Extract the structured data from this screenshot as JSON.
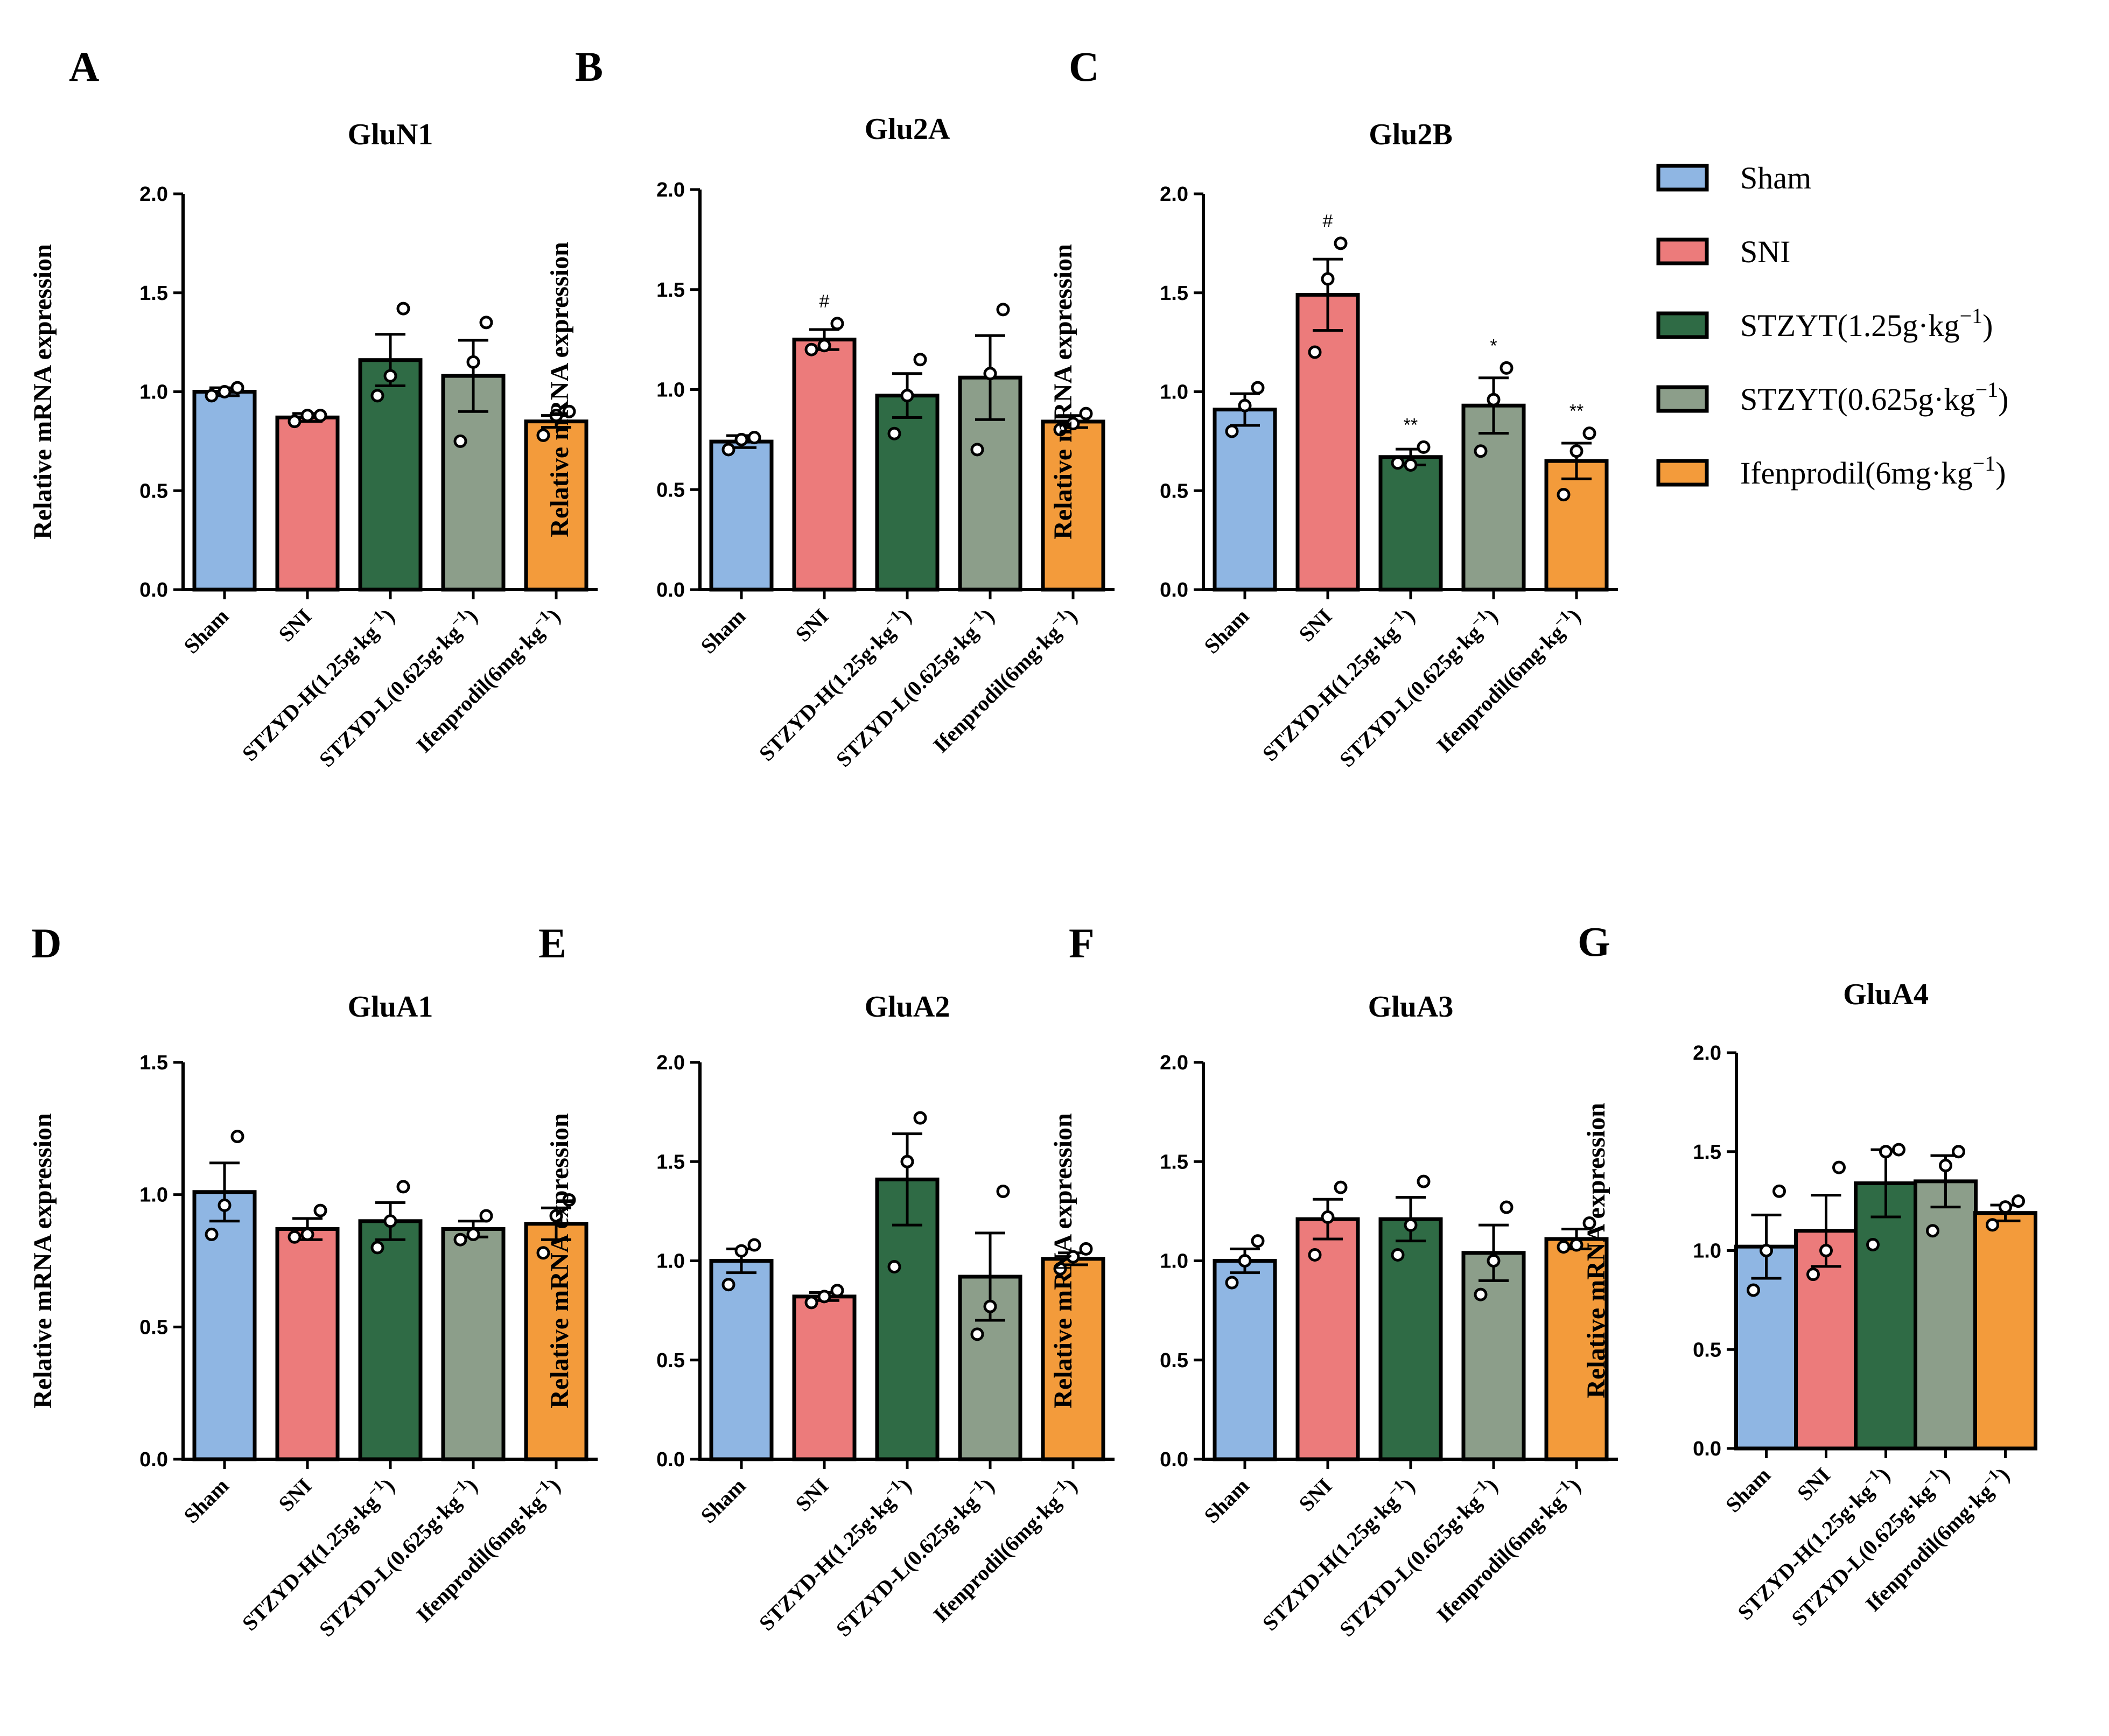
{
  "figure": {
    "legend": {
      "items": [
        {
          "label": "Sham",
          "sup": "",
          "close": "",
          "color": "#8fb6e3"
        },
        {
          "label": "SNI",
          "sup": "",
          "close": "",
          "color": "#ec7b7b"
        },
        {
          "label": "STZYT(1.25g·kg",
          "sup": "−1",
          "close": ")",
          "color": "#2f6b45"
        },
        {
          "label": "STZYT(0.625g·kg",
          "sup": "−1",
          "close": ")",
          "color": "#8c9e8a"
        },
        {
          "label": "Ifenprodil(6mg·kg",
          "sup": "−1",
          "close": ")",
          "color": "#f39b3b"
        }
      ]
    }
  },
  "chart_data": [
    {
      "panel": "A",
      "type": "bar",
      "title": "GluN1",
      "ylabel": "Relative mRNA expression",
      "ylim": [
        0,
        2.0
      ],
      "yticks": [
        "0.0",
        "0.5",
        "1.0",
        "1.5",
        "2.0"
      ],
      "categories": [
        "Sham",
        "SNI",
        "STZYD-H(1.25g·kg",
        "STZYD-L(0.625g·kg",
        "Ifenprodil(6mg·kg"
      ],
      "category_sup": [
        "",
        "",
        "−1",
        "−1",
        "−1"
      ],
      "colors": [
        "#8fb6e3",
        "#ec7b7b",
        "#2f6b45",
        "#8c9e8a",
        "#f39b3b"
      ],
      "values": [
        1.0,
        0.87,
        1.16,
        1.08,
        0.85
      ],
      "sem": [
        0.02,
        0.02,
        0.13,
        0.18,
        0.03
      ],
      "points": [
        [
          0.98,
          1.0,
          1.02
        ],
        [
          0.85,
          0.88,
          0.88
        ],
        [
          0.98,
          1.08,
          1.42
        ],
        [
          0.75,
          1.15,
          1.35
        ],
        [
          0.78,
          0.88,
          0.9
        ]
      ],
      "significance": [
        "",
        "",
        "",
        "",
        ""
      ]
    },
    {
      "panel": "B",
      "type": "bar",
      "title": "Glu2A",
      "ylabel": "Relative mRNA expression",
      "ylim": [
        0,
        2.0
      ],
      "yticks": [
        "0.0",
        "0.5",
        "1.0",
        "1.5",
        "2.0"
      ],
      "categories": [
        "Sham",
        "SNI",
        "STZYD-H(1.25g·kg",
        "STZYD-L(0.625g·kg",
        "Ifenprodil(6mg·kg"
      ],
      "category_sup": [
        "",
        "",
        "−1",
        "−1",
        "−1"
      ],
      "colors": [
        "#8fb6e3",
        "#ec7b7b",
        "#2f6b45",
        "#8c9e8a",
        "#f39b3b"
      ],
      "values": [
        0.74,
        1.25,
        0.97,
        1.06,
        0.84
      ],
      "sem": [
        0.03,
        0.05,
        0.11,
        0.21,
        0.03
      ],
      "points": [
        [
          0.7,
          0.75,
          0.76
        ],
        [
          1.2,
          1.22,
          1.33
        ],
        [
          0.78,
          0.97,
          1.15
        ],
        [
          0.7,
          1.08,
          1.4
        ],
        [
          0.8,
          0.83,
          0.88
        ]
      ],
      "significance": [
        "",
        "#",
        "",
        "",
        ""
      ]
    },
    {
      "panel": "C",
      "type": "bar",
      "title": "Glu2B",
      "ylabel": "Relative mRNA expression",
      "ylim": [
        0,
        2.0
      ],
      "yticks": [
        "0.0",
        "0.5",
        "1.0",
        "1.5",
        "2.0"
      ],
      "categories": [
        "Sham",
        "SNI",
        "STZYD-H(1.25g·kg",
        "STZYD-L(0.625g·kg",
        "Ifenprodil(6mg·kg"
      ],
      "category_sup": [
        "",
        "",
        "−1",
        "−1",
        "−1"
      ],
      "colors": [
        "#8fb6e3",
        "#ec7b7b",
        "#2f6b45",
        "#8c9e8a",
        "#f39b3b"
      ],
      "values": [
        0.91,
        1.49,
        0.67,
        0.93,
        0.65
      ],
      "sem": [
        0.08,
        0.18,
        0.04,
        0.14,
        0.09
      ],
      "points": [
        [
          0.8,
          0.93,
          1.02
        ],
        [
          1.2,
          1.57,
          1.75
        ],
        [
          0.64,
          0.63,
          0.72
        ],
        [
          0.7,
          0.96,
          1.12
        ],
        [
          0.48,
          0.7,
          0.79
        ]
      ],
      "significance": [
        "",
        "#",
        "**",
        "*",
        "**"
      ]
    },
    {
      "panel": "D",
      "type": "bar",
      "title": "GluA1",
      "ylabel": "Relative mRNA expression",
      "ylim": [
        0,
        1.5
      ],
      "yticks": [
        "0.0",
        "0.5",
        "1.0",
        "1.5"
      ],
      "categories": [
        "Sham",
        "SNI",
        "STZYD-H(1.25g·kg",
        "STZYD-L(0.625g·kg",
        "Ifenprodil(6mg·kg"
      ],
      "category_sup": [
        "",
        "",
        "−1",
        "−1",
        "−1"
      ],
      "colors": [
        "#8fb6e3",
        "#ec7b7b",
        "#2f6b45",
        "#8c9e8a",
        "#f39b3b"
      ],
      "values": [
        1.01,
        0.87,
        0.9,
        0.87,
        0.89
      ],
      "sem": [
        0.11,
        0.04,
        0.07,
        0.03,
        0.06
      ],
      "points": [
        [
          0.85,
          0.96,
          1.22
        ],
        [
          0.84,
          0.85,
          0.94
        ],
        [
          0.8,
          0.9,
          1.03
        ],
        [
          0.83,
          0.85,
          0.92
        ],
        [
          0.78,
          0.92,
          0.98
        ]
      ],
      "significance": [
        "",
        "",
        "",
        "",
        ""
      ]
    },
    {
      "panel": "E",
      "type": "bar",
      "title": "GluA2",
      "ylabel": "Relative mRNA expression",
      "ylim": [
        0,
        2.0
      ],
      "yticks": [
        "0.0",
        "0.5",
        "1.0",
        "1.5",
        "2.0"
      ],
      "categories": [
        "Sham",
        "SNI",
        "STZYD-H(1.25g·kg",
        "STZYD-L(0.625g·kg",
        "Ifenprodil(6mg·kg"
      ],
      "category_sup": [
        "",
        "",
        "−1",
        "−1",
        "−1"
      ],
      "colors": [
        "#8fb6e3",
        "#ec7b7b",
        "#2f6b45",
        "#8c9e8a",
        "#f39b3b"
      ],
      "values": [
        1.0,
        0.82,
        1.41,
        0.92,
        1.01
      ],
      "sem": [
        0.06,
        0.02,
        0.23,
        0.22,
        0.03
      ],
      "points": [
        [
          0.88,
          1.05,
          1.08
        ],
        [
          0.79,
          0.82,
          0.85
        ],
        [
          0.97,
          1.5,
          1.72
        ],
        [
          0.63,
          0.77,
          1.35
        ],
        [
          0.96,
          1.02,
          1.06
        ]
      ],
      "significance": [
        "",
        "",
        "",
        "",
        ""
      ]
    },
    {
      "panel": "F",
      "type": "bar",
      "title": "GluA3",
      "ylabel": "Relative mRNA expression",
      "ylim": [
        0,
        2.0
      ],
      "yticks": [
        "0.0",
        "0.5",
        "1.0",
        "1.5",
        "2.0"
      ],
      "categories": [
        "Sham",
        "SNI",
        "STZYD-H(1.25g·kg",
        "STZYD-L(0.625g·kg",
        "Ifenprodil(6mg·kg"
      ],
      "category_sup": [
        "",
        "",
        "−1",
        "−1",
        "−1"
      ],
      "colors": [
        "#8fb6e3",
        "#ec7b7b",
        "#2f6b45",
        "#8c9e8a",
        "#f39b3b"
      ],
      "values": [
        1.0,
        1.21,
        1.21,
        1.04,
        1.11
      ],
      "sem": [
        0.06,
        0.1,
        0.11,
        0.14,
        0.05
      ],
      "points": [
        [
          0.89,
          1.0,
          1.1
        ],
        [
          1.03,
          1.22,
          1.37
        ],
        [
          1.03,
          1.18,
          1.4
        ],
        [
          0.83,
          1.0,
          1.27
        ],
        [
          1.07,
          1.08,
          1.19
        ]
      ],
      "significance": [
        "",
        "",
        "",
        "",
        ""
      ]
    },
    {
      "panel": "G",
      "type": "bar",
      "title": "GluA4",
      "ylabel": "Relative mRNA expression",
      "ylim": [
        0,
        2.0
      ],
      "yticks": [
        "0.0",
        "0.5",
        "1.0",
        "1.5",
        "2.0"
      ],
      "categories": [
        "Sham",
        "SNI",
        "STZYD-H(1.25g·kg",
        "STZYD-L(0.625g·kg",
        "Ifenprodil(6mg·kg"
      ],
      "category_sup": [
        "",
        "",
        "−1",
        "−1",
        "−1"
      ],
      "colors": [
        "#8fb6e3",
        "#ec7b7b",
        "#2f6b45",
        "#8c9e8a",
        "#f39b3b"
      ],
      "values": [
        1.02,
        1.1,
        1.34,
        1.35,
        1.19
      ],
      "sem": [
        0.16,
        0.18,
        0.17,
        0.13,
        0.04
      ],
      "points": [
        [
          0.8,
          1.0,
          1.3
        ],
        [
          0.88,
          1.0,
          1.42
        ],
        [
          1.03,
          1.5,
          1.51
        ],
        [
          1.1,
          1.43,
          1.5
        ],
        [
          1.13,
          1.22,
          1.25
        ]
      ],
      "significance": [
        "",
        "",
        "",
        "",
        ""
      ]
    }
  ]
}
